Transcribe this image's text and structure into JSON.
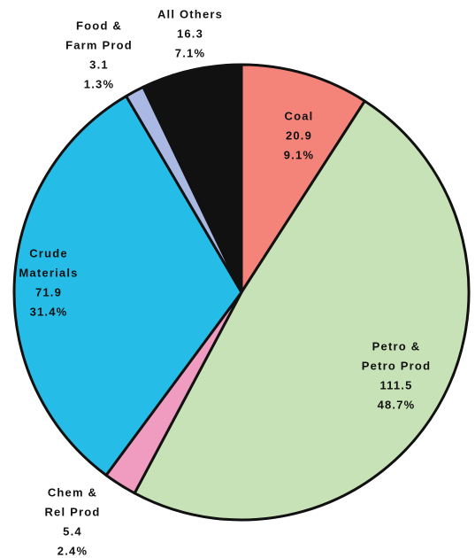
{
  "chart_data": {
    "type": "pie",
    "categories": [
      [
        "Coal"
      ],
      [
        "Petro &",
        "Petro Prod"
      ],
      [
        "Chem &",
        "Rel Prod"
      ],
      [
        "Crude",
        "Materials"
      ],
      [
        "Food &",
        "Farm Prod"
      ],
      [
        "All Others"
      ]
    ],
    "values": [
      20.9,
      111.5,
      5.4,
      71.9,
      3.1,
      16.3
    ],
    "percent_labels": [
      "9.1%",
      "48.7%",
      "2.4%",
      "31.4%",
      "1.3%",
      "7.1%"
    ],
    "colors": [
      "#f4837a",
      "#c8e2b8",
      "#f09cc0",
      "#25bde8",
      "#aab8e4",
      "#111111"
    ]
  }
}
